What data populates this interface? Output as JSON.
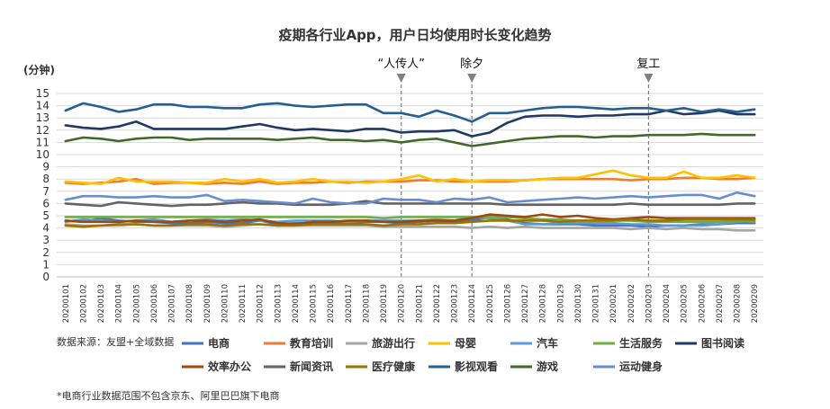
{
  "chart_data": {
    "type": "line",
    "title": "疫期各行业App，用户日均使用时长变化趋势",
    "ylabel": "(分钟)",
    "xlabel": "",
    "ylim": [
      0,
      15
    ],
    "yticks": [
      0,
      1,
      2,
      3,
      4,
      5,
      6,
      7,
      8,
      9,
      10,
      11,
      12,
      13,
      14,
      15
    ],
    "x": [
      "20200101",
      "20200102",
      "20200103",
      "20200104",
      "20200105",
      "20200106",
      "20200107",
      "20200108",
      "20200109",
      "20200110",
      "20200111",
      "20200112",
      "20200113",
      "20200114",
      "20200115",
      "20200116",
      "20200117",
      "20200118",
      "20200119",
      "20200120",
      "20200121",
      "20200122",
      "20200123",
      "20200124",
      "20200125",
      "20200126",
      "20200127",
      "20200128",
      "20200129",
      "20200130",
      "20200131",
      "20200201",
      "20200202",
      "20200203",
      "20200204",
      "20200205",
      "20200206",
      "20200207",
      "20200208",
      "20200209"
    ],
    "annotations": [
      {
        "label": "“人传人”",
        "x": "20200120"
      },
      {
        "label": "除夕",
        "x": "20200124"
      },
      {
        "label": "复工",
        "x": "20200203"
      }
    ],
    "source_label": "数据来源：友盟+全域数据",
    "footnote": "*电商行业数据范围不包含京东、阿里巴巴旗下电商",
    "series": [
      {
        "name": "电商",
        "color": "#4472C4",
        "values": [
          4.6,
          4.5,
          4.8,
          4.6,
          4.5,
          4.5,
          4.4,
          4.4,
          4.5,
          4.4,
          4.4,
          4.6,
          4.3,
          4.4,
          4.4,
          4.4,
          4.4,
          4.5,
          4.5,
          4.4,
          4.5,
          4.6,
          4.5,
          4.6,
          4.9,
          4.7,
          4.4,
          4.3,
          4.3,
          4.3,
          4.2,
          4.2,
          4.2,
          4.1,
          4.2,
          4.2,
          4.3,
          4.3,
          4.4,
          4.4
        ]
      },
      {
        "name": "教育培训",
        "color": "#ED7D31",
        "values": [
          7.7,
          7.6,
          7.7,
          7.8,
          8.0,
          7.6,
          7.7,
          7.7,
          7.6,
          7.7,
          7.6,
          7.8,
          7.6,
          7.7,
          7.7,
          7.8,
          7.7,
          7.8,
          7.8,
          7.8,
          7.9,
          7.9,
          7.8,
          7.8,
          7.8,
          7.8,
          7.9,
          8.0,
          8.0,
          8.0,
          8.0,
          8.0,
          7.9,
          8.0,
          8.0,
          8.1,
          8.1,
          8.0,
          8.0,
          8.1
        ]
      },
      {
        "name": "旅游出行",
        "color": "#A5A5A5",
        "values": [
          4.3,
          4.2,
          4.2,
          4.2,
          4.3,
          4.2,
          4.2,
          4.2,
          4.2,
          4.1,
          4.2,
          4.3,
          4.2,
          4.2,
          4.2,
          4.2,
          4.2,
          4.2,
          4.1,
          4.1,
          4.1,
          4.1,
          4.1,
          4.0,
          4.1,
          4.0,
          4.1,
          4.0,
          4.0,
          4.0,
          4.0,
          4.0,
          3.9,
          4.0,
          3.9,
          4.0,
          3.9,
          3.9,
          3.8,
          3.8
        ]
      },
      {
        "name": "母婴",
        "color": "#FFC000",
        "values": [
          7.8,
          7.7,
          7.6,
          8.1,
          7.8,
          7.8,
          7.8,
          7.7,
          7.7,
          8.0,
          7.8,
          8.0,
          7.7,
          7.8,
          8.0,
          7.8,
          7.8,
          7.7,
          7.8,
          8.0,
          8.3,
          7.8,
          8.0,
          7.8,
          7.9,
          7.9,
          7.9,
          8.0,
          8.1,
          8.1,
          8.4,
          8.7,
          8.3,
          8.1,
          8.1,
          8.6,
          8.1,
          8.1,
          8.3,
          8.1
        ]
      },
      {
        "name": "汽车",
        "color": "#5B9BD5",
        "values": [
          4.5,
          4.7,
          4.6,
          4.5,
          4.6,
          4.7,
          4.5,
          4.6,
          4.7,
          4.6,
          4.7,
          4.6,
          4.5,
          4.6,
          4.6,
          4.6,
          4.5,
          4.6,
          4.6,
          4.6,
          4.6,
          4.7,
          4.6,
          4.9,
          4.8,
          4.6,
          4.3,
          4.3,
          4.4,
          4.4,
          4.4,
          4.4,
          4.3,
          4.3,
          4.2,
          4.2,
          4.2,
          4.3,
          4.5,
          4.6
        ]
      },
      {
        "name": "生活服务",
        "color": "#70AD47",
        "values": [
          4.9,
          4.9,
          4.9,
          4.9,
          4.9,
          4.9,
          4.9,
          4.9,
          4.9,
          4.9,
          4.9,
          4.9,
          4.9,
          4.9,
          4.9,
          4.9,
          4.9,
          4.9,
          4.8,
          4.9,
          4.9,
          4.9,
          4.9,
          4.9,
          4.9,
          4.9,
          4.8,
          4.7,
          4.7,
          4.6,
          4.6,
          4.6,
          4.6,
          4.5,
          4.5,
          4.5,
          4.5,
          4.5,
          4.6,
          4.5
        ]
      },
      {
        "name": "图书阅读",
        "color": "#1F3864",
        "values": [
          12.4,
          12.2,
          12.1,
          12.3,
          12.7,
          12.1,
          12.1,
          12.1,
          12.1,
          12.1,
          12.3,
          12.5,
          12.2,
          12.0,
          12.1,
          12.0,
          11.9,
          12.1,
          12.1,
          11.8,
          11.9,
          11.9,
          12.0,
          11.5,
          11.8,
          12.6,
          13.1,
          13.2,
          13.2,
          13.1,
          13.2,
          13.2,
          13.3,
          13.3,
          13.6,
          13.3,
          13.4,
          13.6,
          13.3,
          13.3
        ]
      },
      {
        "name": "效率办公",
        "color": "#9E480E",
        "values": [
          4.6,
          4.5,
          4.5,
          4.5,
          4.6,
          4.5,
          4.5,
          4.6,
          4.6,
          4.5,
          4.6,
          4.7,
          4.4,
          4.3,
          4.5,
          4.5,
          4.6,
          4.6,
          4.5,
          4.5,
          4.6,
          4.6,
          4.6,
          4.8,
          5.1,
          5.0,
          4.9,
          5.1,
          4.9,
          5.0,
          4.8,
          4.7,
          4.8,
          4.9,
          4.8,
          4.8,
          4.8,
          4.8,
          4.8,
          4.8
        ]
      },
      {
        "name": "新闻资讯",
        "color": "#636363",
        "values": [
          6.0,
          5.9,
          5.8,
          6.1,
          6.0,
          5.9,
          5.8,
          5.9,
          5.9,
          6.0,
          6.1,
          6.0,
          6.0,
          5.9,
          5.9,
          5.9,
          6.0,
          6.2,
          6.0,
          6.0,
          6.0,
          6.0,
          6.0,
          6.0,
          6.0,
          5.9,
          5.9,
          5.9,
          5.9,
          5.9,
          5.9,
          5.9,
          6.0,
          5.9,
          5.9,
          5.9,
          5.9,
          5.9,
          6.0,
          6.0
        ]
      },
      {
        "name": "医疗健康",
        "color": "#997300",
        "values": [
          4.2,
          4.1,
          4.2,
          4.3,
          4.3,
          4.2,
          4.2,
          4.3,
          4.3,
          4.2,
          4.3,
          4.3,
          4.2,
          4.2,
          4.3,
          4.3,
          4.3,
          4.3,
          4.2,
          4.3,
          4.3,
          4.4,
          4.4,
          4.5,
          4.6,
          4.6,
          4.6,
          4.6,
          4.5,
          4.6,
          4.6,
          4.6,
          4.7,
          4.6,
          4.6,
          4.7,
          4.7,
          4.7,
          4.7,
          4.7
        ]
      },
      {
        "name": "影视观看",
        "color": "#255E91",
        "values": [
          13.6,
          14.2,
          13.9,
          13.5,
          13.7,
          14.1,
          14.1,
          13.9,
          13.9,
          13.8,
          13.8,
          14.1,
          14.2,
          14.0,
          13.9,
          14.0,
          14.1,
          14.1,
          13.4,
          13.4,
          13.1,
          13.6,
          13.2,
          12.7,
          13.4,
          13.4,
          13.6,
          13.8,
          13.9,
          13.9,
          13.8,
          13.7,
          13.8,
          13.8,
          13.6,
          13.8,
          13.5,
          13.7,
          13.5,
          13.7
        ]
      },
      {
        "name": "游戏",
        "color": "#43682B",
        "values": [
          11.1,
          11.4,
          11.3,
          11.1,
          11.3,
          11.4,
          11.4,
          11.2,
          11.3,
          11.3,
          11.3,
          11.3,
          11.2,
          11.3,
          11.4,
          11.2,
          11.2,
          11.1,
          11.2,
          11.0,
          11.2,
          11.3,
          11.0,
          10.7,
          10.9,
          11.1,
          11.3,
          11.4,
          11.5,
          11.5,
          11.4,
          11.5,
          11.5,
          11.6,
          11.6,
          11.6,
          11.7,
          11.6,
          11.6,
          11.6
        ]
      },
      {
        "name": "运动健身",
        "color": "#698ED0",
        "values": [
          6.3,
          6.6,
          6.6,
          6.5,
          6.5,
          6.6,
          6.5,
          6.5,
          6.7,
          6.2,
          6.3,
          6.2,
          6.1,
          6.0,
          6.4,
          6.1,
          6.0,
          6.0,
          6.4,
          6.3,
          6.3,
          6.1,
          6.4,
          6.3,
          6.5,
          6.1,
          6.2,
          6.3,
          6.4,
          6.5,
          6.4,
          6.5,
          6.6,
          6.5,
          6.6,
          6.7,
          6.7,
          6.4,
          6.9,
          6.6
        ]
      }
    ]
  }
}
